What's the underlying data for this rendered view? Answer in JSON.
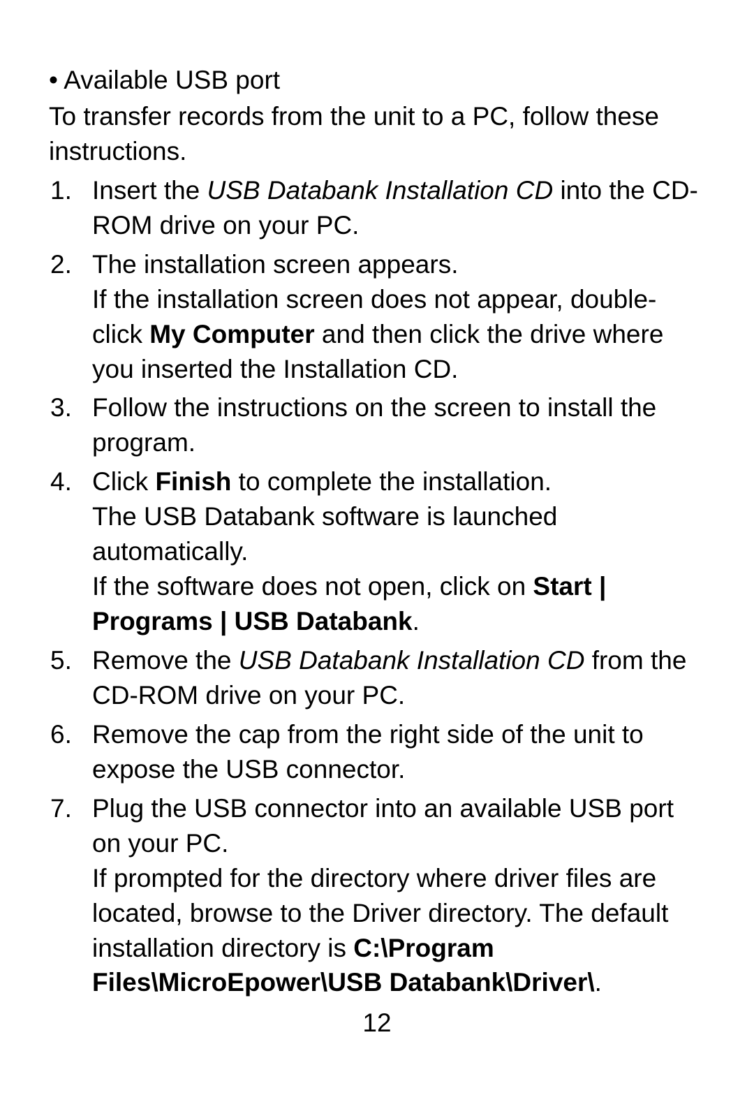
{
  "bullet": "• Available USB port",
  "intro": "To transfer records from the unit to a PC, follow these instructions.",
  "steps": [
    {
      "number": "1.",
      "paragraphs": [
        {
          "runs": [
            {
              "t": "Insert the "
            },
            {
              "t": "USB Databank Installation CD",
              "italic": true
            },
            {
              "t": " into the CD-ROM drive on your PC."
            }
          ]
        }
      ]
    },
    {
      "number": "2.",
      "paragraphs": [
        {
          "runs": [
            {
              "t": "The installation screen appears."
            }
          ]
        },
        {
          "runs": [
            {
              "t": "If the installation screen does not appear, double-click "
            },
            {
              "t": "My Computer",
              "bold": true
            },
            {
              "t": " and then click the drive where you inserted the Installation CD."
            }
          ]
        }
      ]
    },
    {
      "number": "3.",
      "paragraphs": [
        {
          "runs": [
            {
              "t": "Follow the instructions on the screen to install the program."
            }
          ]
        }
      ]
    },
    {
      "number": "4.",
      "paragraphs": [
        {
          "runs": [
            {
              "t": "Click "
            },
            {
              "t": "Finish",
              "bold": true
            },
            {
              "t": " to complete the installation."
            }
          ]
        },
        {
          "runs": [
            {
              "t": "The USB Databank software is launched automatically."
            }
          ]
        },
        {
          "runs": [
            {
              "t": "If the software does not open, click on "
            },
            {
              "t": "Start | Programs | USB Databank",
              "bold": true
            },
            {
              "t": "."
            }
          ]
        }
      ]
    },
    {
      "number": "5.",
      "paragraphs": [
        {
          "runs": [
            {
              "t": "Remove the "
            },
            {
              "t": "USB Databank Installation CD",
              "italic": true
            },
            {
              "t": " from the CD-ROM drive on your PC."
            }
          ]
        }
      ]
    },
    {
      "number": "6.",
      "paragraphs": [
        {
          "runs": [
            {
              "t": "Remove the cap from the right side of the unit to expose the USB connector."
            }
          ]
        }
      ]
    },
    {
      "number": "7.",
      "paragraphs": [
        {
          "runs": [
            {
              "t": "Plug the USB connector into an available USB port on your PC."
            }
          ]
        },
        {
          "runs": [
            {
              "t": "If prompted for the directory where driver files are located, browse to the Driver directory. The default installation directory is "
            },
            {
              "t": "C:\\Program Files\\MicroEpower\\USB Databank\\Driver\\",
              "bold": true
            },
            {
              "t": "."
            }
          ]
        }
      ]
    }
  ],
  "pageNumber": "12"
}
